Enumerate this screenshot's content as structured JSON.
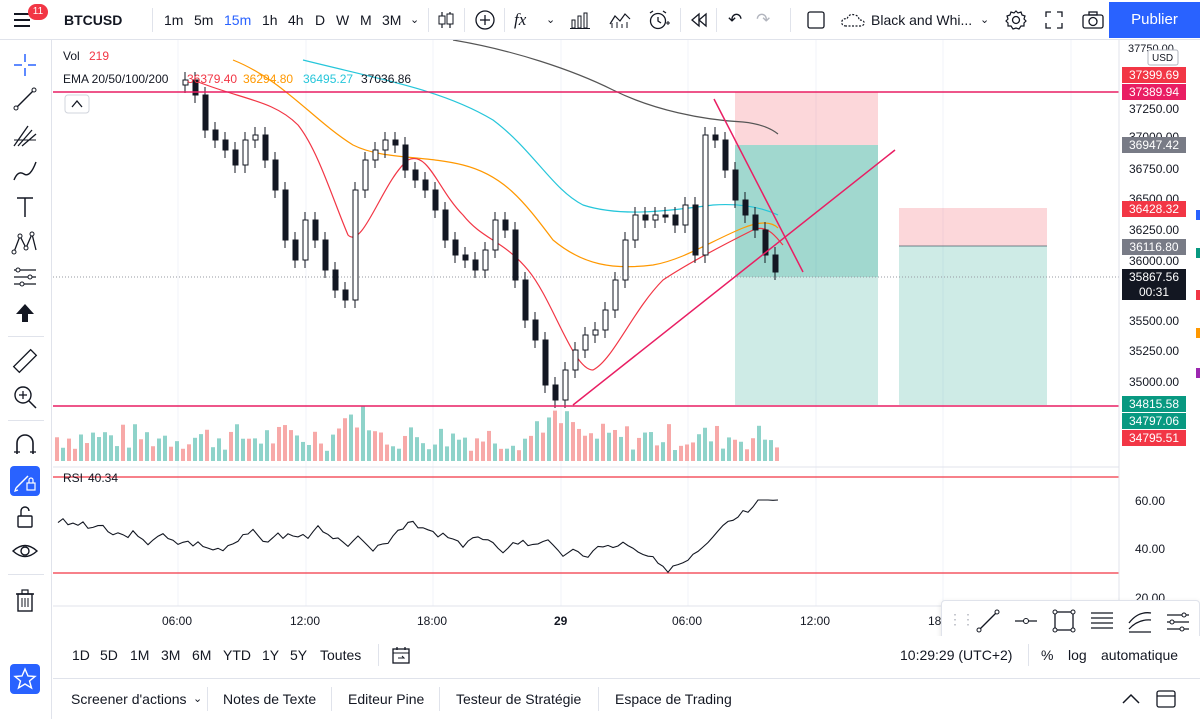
{
  "topbar": {
    "badge": "11",
    "symbol": "BTCUSD",
    "intervals": [
      "1m",
      "5m",
      "15m",
      "1h",
      "4h",
      "D",
      "W",
      "M",
      "3M"
    ],
    "active_interval": "15m",
    "indicator_icon_label": "fx",
    "layout_name": "Black and Whi...",
    "publish_label": "Publier"
  },
  "legend": {
    "vol_label": "Vol",
    "vol_value": "219",
    "ema_label": "EMA 20/50/100/200",
    "ema_values": [
      "36379.40",
      "36294.80",
      "36495.27",
      "37036.86"
    ],
    "ema_colors": [
      "#f23645",
      "#ff9800",
      "#26c6da",
      "#555555"
    ],
    "rsi_label": "RSI",
    "rsi_value": "40.34"
  },
  "price_axis": {
    "currency": "USD",
    "top_partial": "37750.00",
    "ticks": [
      "37250.00",
      "37000.00",
      "36750.00",
      "36500.00",
      "36250.00",
      "36000.00",
      "35500.00",
      "35250.00",
      "35000.00"
    ],
    "labels": [
      {
        "value": "37399.69",
        "color": "#f23645"
      },
      {
        "value": "37389.94",
        "color": "#e91e63"
      },
      {
        "value": "36947.42",
        "color": "#787b86"
      },
      {
        "value": "36428.32",
        "color": "#f23645"
      },
      {
        "value": "36116.80",
        "color": "#787b86"
      },
      {
        "value": "35867.56",
        "color": "#131722"
      },
      {
        "value": "00:31",
        "color": "#131722"
      },
      {
        "value": "34815.58",
        "color": "#089981"
      },
      {
        "value": "34797.06",
        "color": "#089981"
      },
      {
        "value": "34795.51",
        "color": "#f23645"
      }
    ]
  },
  "rsi_axis": {
    "ticks": [
      "60.00",
      "40.00",
      "20.00"
    ]
  },
  "time_axis": {
    "ticks": [
      "06:00",
      "12:00",
      "18:00",
      "29",
      "06:00",
      "12:00",
      "18:"
    ]
  },
  "rangebar": {
    "ranges": [
      "1D",
      "5D",
      "1M",
      "3M",
      "6M",
      "YTD",
      "1Y",
      "5Y",
      "Toutes"
    ],
    "clock": "10:29:29 (UTC+2)",
    "percent": "%",
    "log": "log",
    "auto": "automatique"
  },
  "bottom_tabs": [
    "Screener d'actions",
    "Notes de Texte",
    "Editeur Pine",
    "Testeur de Stratégie",
    "Espace de Trading"
  ],
  "chart_data": {
    "type": "candlestick",
    "title": "BTCUSD",
    "interval": "15m",
    "horizontal_lines": [
      37389.94,
      34815.58
    ],
    "rsi_levels": [
      70,
      30
    ],
    "positions": [
      {
        "type": "short",
        "entry": 36947.42,
        "stop": 37389.94,
        "target": 34815.58
      },
      {
        "type": "short",
        "entry": 36116.8,
        "stop": 36428.32,
        "target": 34797.06
      }
    ],
    "last_price": 35867.56
  }
}
